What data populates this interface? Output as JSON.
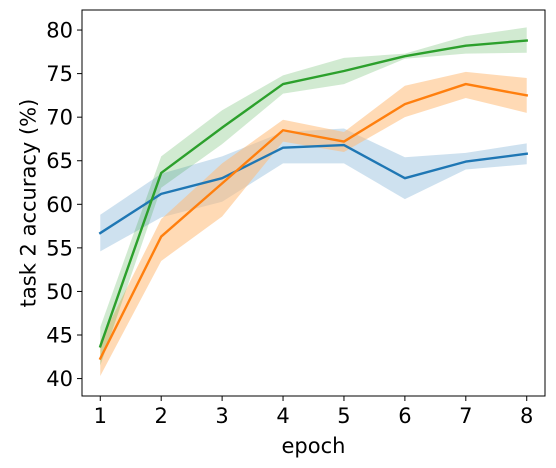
{
  "chart_data": {
    "type": "line",
    "title": "",
    "xlabel": "epoch",
    "ylabel": "task 2 accuracy (%)",
    "x": [
      1,
      2,
      3,
      4,
      5,
      6,
      7,
      8
    ],
    "xlim": [
      0.7,
      8.3
    ],
    "ylim": [
      38,
      82.3
    ],
    "xticks": [
      1,
      2,
      3,
      4,
      5,
      6,
      7,
      8
    ],
    "yticks": [
      40,
      45,
      50,
      55,
      60,
      65,
      70,
      75,
      80
    ],
    "grid": false,
    "legend": "none",
    "series": [
      {
        "color": "#1f77b4",
        "band_color": "#1f77b4",
        "values": [
          56.7,
          61.2,
          63.0,
          66.5,
          66.8,
          63.0,
          64.9,
          65.8
        ],
        "lower": [
          54.6,
          58.5,
          60.3,
          64.7,
          64.7,
          60.6,
          64.0,
          64.6
        ],
        "upper": [
          58.8,
          63.5,
          65.5,
          68.3,
          68.7,
          65.4,
          65.9,
          67.0
        ]
      },
      {
        "color": "#ff7f0e",
        "band_color": "#ffbb78",
        "values": [
          42.3,
          56.3,
          62.4,
          68.5,
          67.2,
          71.5,
          73.8,
          72.5
        ],
        "lower": [
          40.3,
          53.5,
          58.6,
          67.2,
          66.0,
          70.0,
          72.2,
          70.5
        ],
        "upper": [
          44.3,
          58.3,
          64.7,
          69.7,
          68.3,
          73.6,
          75.2,
          74.5
        ]
      },
      {
        "color": "#2ca02c",
        "band_color": "#2ca02c",
        "values": [
          43.7,
          63.6,
          68.8,
          73.8,
          75.3,
          77.0,
          78.2,
          78.8
        ],
        "lower": [
          41.5,
          61.9,
          66.9,
          72.7,
          73.8,
          76.7,
          77.3,
          77.4
        ],
        "upper": [
          45.9,
          65.5,
          70.8,
          74.8,
          76.8,
          77.3,
          79.3,
          80.3
        ]
      }
    ]
  }
}
